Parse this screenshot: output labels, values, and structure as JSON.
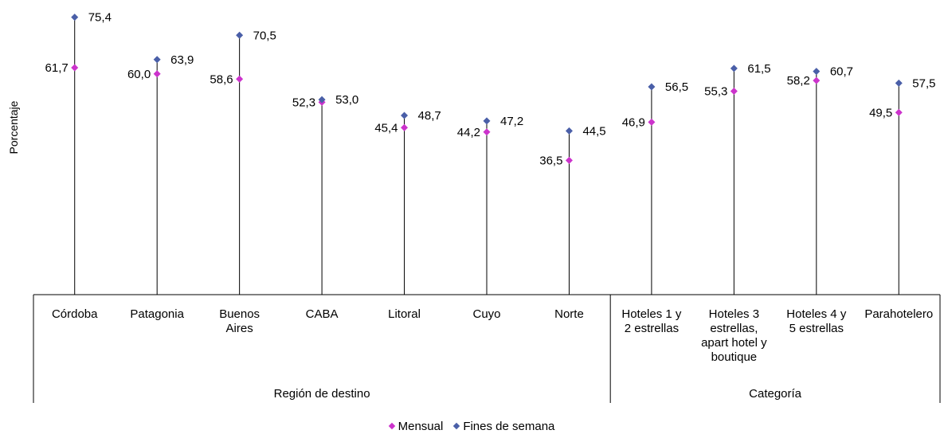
{
  "chart_data": {
    "type": "scatter",
    "ylabel": "Porcentaje",
    "categories": [
      "Córdoba",
      "Patagonia",
      "Buenos Aires",
      "CABA",
      "Litoral",
      "Cuyo",
      "Norte",
      "Hoteles 1 y 2 estrellas",
      "Hoteles 3 estrellas, apart hotel y boutique",
      "Hoteles 4 y 5 estrellas",
      "Parahotelero"
    ],
    "category_lines": [
      [
        "Córdoba"
      ],
      [
        "Patagonia"
      ],
      [
        "Buenos",
        "Aires"
      ],
      [
        "CABA"
      ],
      [
        "Litoral"
      ],
      [
        "Cuyo"
      ],
      [
        "Norte"
      ],
      [
        "Hoteles 1 y",
        "2 estrellas"
      ],
      [
        "Hoteles 3",
        "estrellas,",
        "apart hotel y",
        "boutique"
      ],
      [
        "Hoteles 4 y",
        "5 estrellas"
      ],
      [
        "Parahotelero"
      ]
    ],
    "groups": [
      {
        "name": "Región de destino",
        "count": 7
      },
      {
        "name": "Categoría",
        "count": 4
      }
    ],
    "series": [
      {
        "name": "Mensual",
        "color": "#cc33cc",
        "values": [
          61.7,
          60.0,
          58.6,
          52.3,
          45.4,
          44.2,
          36.5,
          46.9,
          55.3,
          58.2,
          49.5
        ],
        "labels": [
          "61,7",
          "60,0",
          "58,6",
          "52,3",
          "45,4",
          "44,2",
          "36,5",
          "46,9",
          "55,3",
          "58,2",
          "49,5"
        ]
      },
      {
        "name": "Fines de semana",
        "color": "#4a5fa8",
        "values": [
          75.4,
          63.9,
          70.5,
          53.0,
          48.7,
          47.2,
          44.5,
          56.5,
          61.5,
          60.7,
          57.5
        ],
        "labels": [
          "75,4",
          "63,9",
          "70,5",
          "53,0",
          "48,7",
          "47,2",
          "44,5",
          "56,5",
          "61,5",
          "60,7",
          "57,5"
        ]
      }
    ],
    "ylim": [
      0,
      80
    ],
    "grid": false,
    "legend_position": "bottom"
  }
}
